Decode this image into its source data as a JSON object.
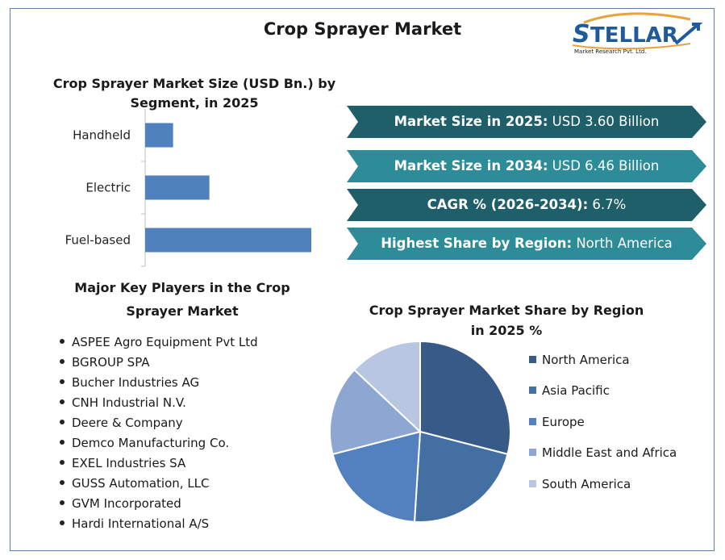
{
  "header": {
    "title": "Crop Sprayer Market"
  },
  "logo": {
    "name": "STELLAR",
    "subtitle": "Market Research Pvt. Ltd."
  },
  "bar_chart": {
    "title": "Crop Sprayer Market Size (USD Bn.) by Segment, in 2025"
  },
  "highlights": [
    {
      "label": "Market Size in 2025:",
      "value": "USD 3.60 Billion",
      "color": "#1f5f69"
    },
    {
      "label": "Market Size in 2034:",
      "value": "USD 6.46 Billion",
      "color": "#2e8b98"
    },
    {
      "label": "CAGR % (2026-2034):",
      "value": "6.7%",
      "color": "#1f5f69"
    },
    {
      "label": "Highest Share by Region:",
      "value": "North America",
      "color": "#2e8b98"
    }
  ],
  "players": {
    "title": "Major Key Players in the Crop Sprayer Market",
    "items": [
      "ASPEE Agro Equipment Pvt Ltd",
      "BGROUP SPA",
      "Bucher Industries AG",
      "CNH Industrial N.V.",
      "Deere & Company",
      "Demco Manufacturing Co.",
      "EXEL Industries SA",
      "GUSS Automation, LLC",
      "GVM Incorporated",
      "Hardi International A/S"
    ]
  },
  "pie_chart": {
    "title": "Crop Sprayer Market Share by Region in 2025 %"
  },
  "chart_data": [
    {
      "type": "bar",
      "orientation": "horizontal",
      "title": "Crop Sprayer Market Size (USD Bn.) by Segment, in 2025",
      "categories": [
        "Handheld",
        "Electric",
        "Fuel-based"
      ],
      "values": [
        0.4,
        0.92,
        2.38
      ],
      "xlim": [
        0,
        2.38
      ],
      "grid": false,
      "color": "#4f81bd"
    },
    {
      "type": "pie",
      "title": "Crop Sprayer Market Share by Region in 2025 %",
      "labels": [
        "North America",
        "Asia Pacific",
        "Europe",
        "Middle East and Africa",
        "South America"
      ],
      "values": [
        29,
        22,
        20,
        16,
        13
      ],
      "colors": [
        "#375a87",
        "#436fa2",
        "#5381c0",
        "#8ea7d2",
        "#b8c6e2"
      ],
      "legend": "right"
    }
  ]
}
